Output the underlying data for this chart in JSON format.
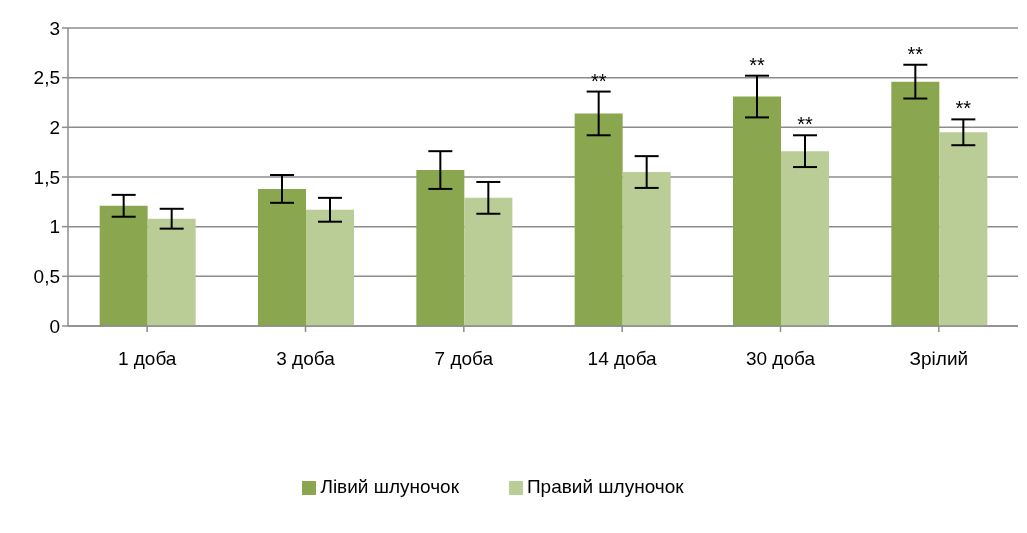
{
  "chart_data": {
    "type": "bar",
    "categories": [
      "1 доба",
      "3 доба",
      "7 доба",
      "14 доба",
      "30 доба",
      "Зрілий"
    ],
    "series": [
      {
        "name": "Лівий шлуночок",
        "color": "#8aa64f",
        "values": [
          1.21,
          1.38,
          1.57,
          2.14,
          2.31,
          2.46
        ],
        "errors": [
          0.11,
          0.14,
          0.19,
          0.22,
          0.21,
          0.17
        ],
        "value_labels": [
          null,
          null,
          null,
          "**",
          "**",
          "**"
        ]
      },
      {
        "name": "Правий шлуночок",
        "color": "#bacd96",
        "values": [
          1.08,
          1.17,
          1.29,
          1.55,
          1.76,
          1.95
        ],
        "errors": [
          0.1,
          0.12,
          0.16,
          0.16,
          0.16,
          0.13
        ],
        "value_labels": [
          null,
          null,
          null,
          null,
          "**",
          "**"
        ]
      }
    ],
    "ylim": [
      0,
      3
    ],
    "yticks": [
      0,
      {
        "value": 0.5,
        "label": "0,5"
      },
      1,
      {
        "value": 1.5,
        "label": "1,5"
      },
      2,
      {
        "value": 2.5,
        "label": "2,5"
      },
      3
    ],
    "grid": "y",
    "legend": "bottom"
  }
}
